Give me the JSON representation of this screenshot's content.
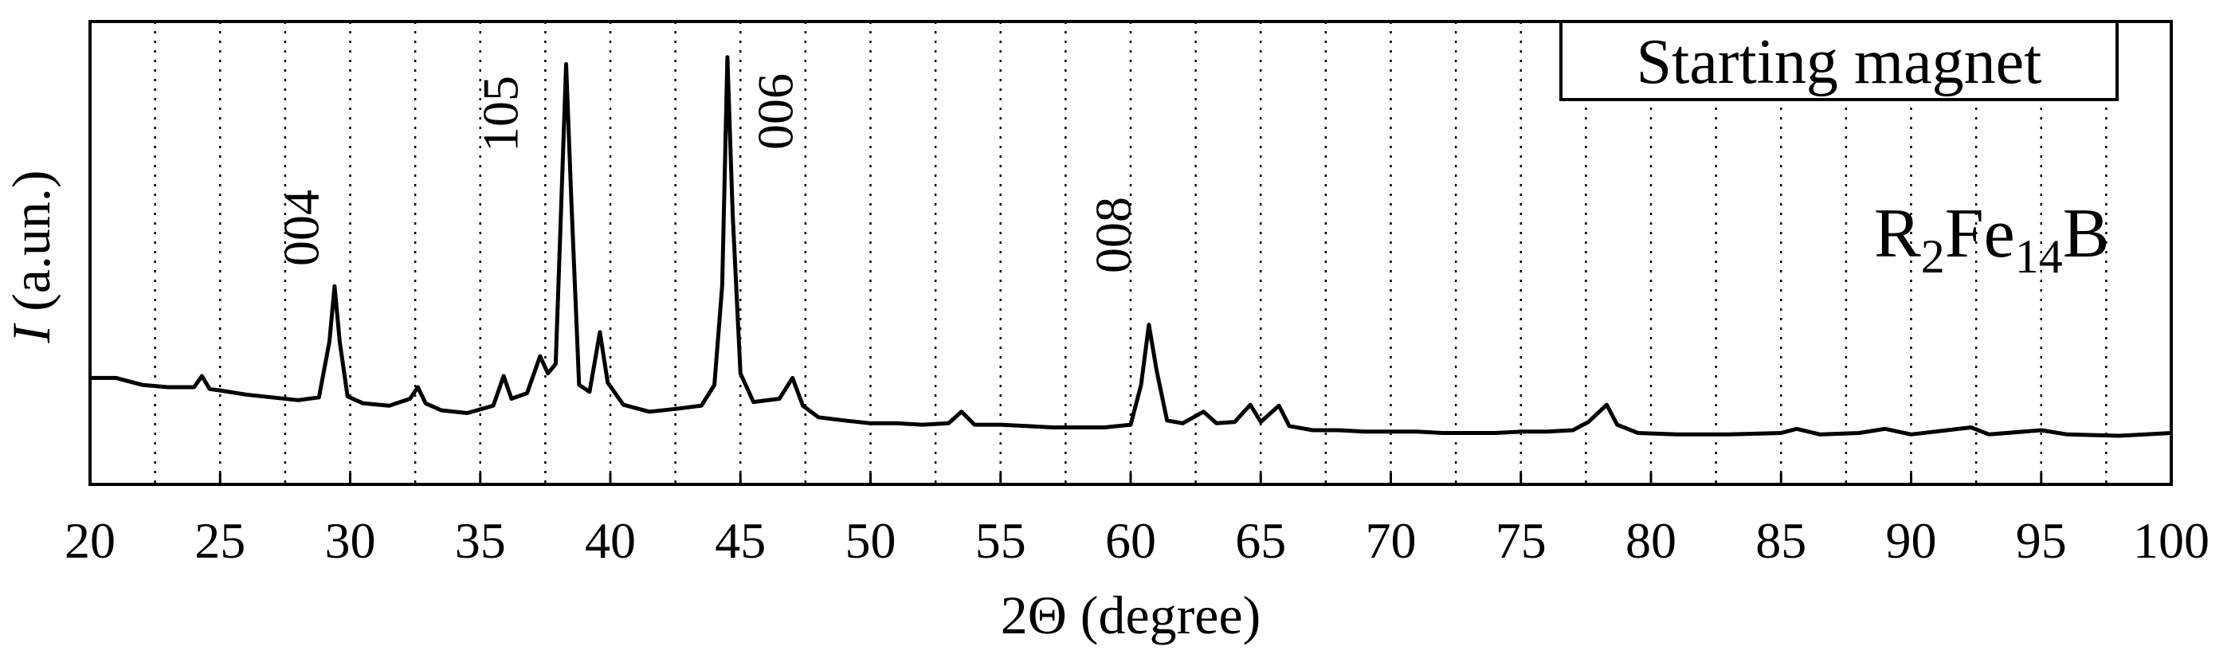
{
  "chart_data": {
    "type": "line",
    "xlabel": "2Θ (degree)",
    "ylabel": "I (a.un.)",
    "legend_box": "Starting magnet",
    "phase_label": "R2Fe14B",
    "annotations": [
      "004",
      "105",
      "006",
      "008"
    ],
    "color": "#000000",
    "grid": true,
    "xlim": [
      20,
      100
    ],
    "xticks": [
      20,
      25,
      30,
      35,
      40,
      45,
      50,
      55,
      60,
      65,
      70,
      75,
      80,
      85,
      90,
      95,
      100
    ],
    "xminorticks": [
      22.5,
      27.5,
      32.5,
      37.5,
      42.5,
      47.5,
      52.5,
      57.5,
      62.5,
      67.5,
      72.5,
      77.5,
      82.5,
      87.5,
      92.5,
      97.5
    ],
    "ylim": [
      0,
      100
    ],
    "x": [
      20,
      21,
      22,
      23,
      24,
      24.3,
      24.6,
      25,
      26,
      27,
      28,
      28.8,
      29.2,
      29.4,
      29.6,
      29.9,
      30.5,
      31.5,
      32.3,
      32.6,
      32.9,
      33.5,
      34.5,
      35.5,
      35.9,
      36.2,
      36.8,
      37.3,
      37.6,
      37.9,
      38.1,
      38.3,
      38.5,
      38.8,
      39.2,
      39.6,
      39.9,
      40.5,
      41.5,
      42.5,
      43.5,
      44,
      44.3,
      44.5,
      44.7,
      45,
      45.5,
      46.5,
      47,
      47.4,
      48,
      49,
      50,
      51,
      52,
      53,
      53.5,
      54,
      55,
      56,
      57,
      58,
      59,
      60,
      60.4,
      60.7,
      61,
      61.4,
      62,
      62.8,
      63.3,
      64,
      64.6,
      65,
      65.7,
      66.1,
      67,
      68,
      69,
      70,
      71,
      72,
      73,
      74,
      75,
      76,
      77,
      77.6,
      78.3,
      78.7,
      79.5,
      81,
      83,
      85,
      85.6,
      86.5,
      88,
      89,
      90,
      92.3,
      93,
      95,
      96,
      98,
      100
    ],
    "values": [
      23,
      23,
      21.5,
      21,
      21,
      23.4,
      20.6,
      20.3,
      19.4,
      18.8,
      18.2,
      18.8,
      30.8,
      42.8,
      30.8,
      19,
      17.5,
      17,
      18.5,
      21,
      17.5,
      16,
      15.4,
      17,
      23.4,
      18.5,
      19.7,
      27.7,
      24,
      26,
      58.5,
      90.8,
      61.5,
      21.5,
      20,
      32.9,
      22,
      17.2,
      15.7,
      16.3,
      17,
      21.5,
      43,
      92.3,
      58.5,
      24,
      17.8,
      18.5,
      23,
      17,
      14.5,
      13.8,
      13.2,
      13.2,
      12.9,
      13.2,
      15.7,
      12.9,
      12.9,
      12.6,
      12.3,
      12.3,
      12.3,
      12.9,
      21.5,
      34.5,
      24.6,
      13.8,
      13.2,
      15.7,
      13.2,
      13.5,
      17.2,
      13.5,
      17,
      12.6,
      11.7,
      11.7,
      11.4,
      11.4,
      11.4,
      11.1,
      11.1,
      11.1,
      11.4,
      11.4,
      11.7,
      13.5,
      17.2,
      12.9,
      11.1,
      10.8,
      10.8,
      11.1,
      12,
      10.8,
      11.1,
      12,
      10.8,
      12.3,
      10.8,
      11.7,
      10.8,
      10.5,
      11.1
    ]
  }
}
